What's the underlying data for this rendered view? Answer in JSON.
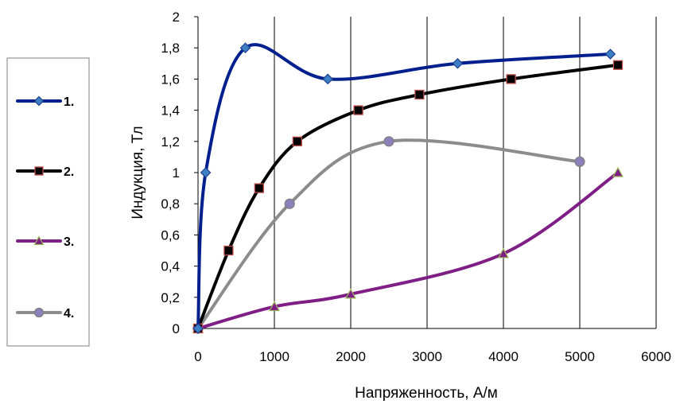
{
  "chart_data": {
    "type": "line",
    "xlabel": "Напряженность, А/м",
    "ylabel": "Индукция, Тл",
    "xlim": [
      0,
      6000
    ],
    "ylim": [
      0,
      2
    ],
    "x_ticks": [
      "0",
      "1000",
      "2000",
      "3000",
      "4000",
      "5000",
      "6000"
    ],
    "y_ticks": [
      "0",
      "0,2",
      "0,4",
      "0,6",
      "0,8",
      "1",
      "1,2",
      "1,4",
      "1,6",
      "1,8",
      "2"
    ],
    "grid": "vertical",
    "legend_position": "left",
    "smooth": true,
    "series": [
      {
        "name": "1.",
        "color": "#001f8f",
        "marker": "diamond",
        "marker_fill": "#3c7fc7",
        "marker_stroke": "#1f3f8f",
        "points": [
          [
            0,
            0
          ],
          [
            100,
            1.0
          ],
          [
            620,
            1.8
          ],
          [
            1700,
            1.6
          ],
          [
            3400,
            1.7
          ],
          [
            5400,
            1.76
          ]
        ]
      },
      {
        "name": "2.",
        "color": "#000000",
        "marker": "square",
        "marker_fill": "#000000",
        "marker_stroke": "#c0504d",
        "points": [
          [
            0,
            0
          ],
          [
            400,
            0.5
          ],
          [
            800,
            0.9
          ],
          [
            1300,
            1.2
          ],
          [
            2100,
            1.4
          ],
          [
            2900,
            1.5
          ],
          [
            4100,
            1.6
          ],
          [
            5500,
            1.69
          ]
        ]
      },
      {
        "name": "3.",
        "color": "#7f1f86",
        "marker": "triangle",
        "marker_fill": "#7f1f86",
        "marker_stroke": "#9bbb59",
        "points": [
          [
            0,
            0
          ],
          [
            1000,
            0.14
          ],
          [
            2000,
            0.22
          ],
          [
            4000,
            0.48
          ],
          [
            5500,
            1.0
          ]
        ]
      },
      {
        "name": "4.",
        "color": "#8c8c8c",
        "marker": "circle",
        "marker_fill": "#8c80b8",
        "marker_stroke": "#7f7f7f",
        "points": [
          [
            0,
            0
          ],
          [
            1200,
            0.8
          ],
          [
            2500,
            1.2
          ],
          [
            5000,
            1.07
          ]
        ]
      }
    ]
  }
}
